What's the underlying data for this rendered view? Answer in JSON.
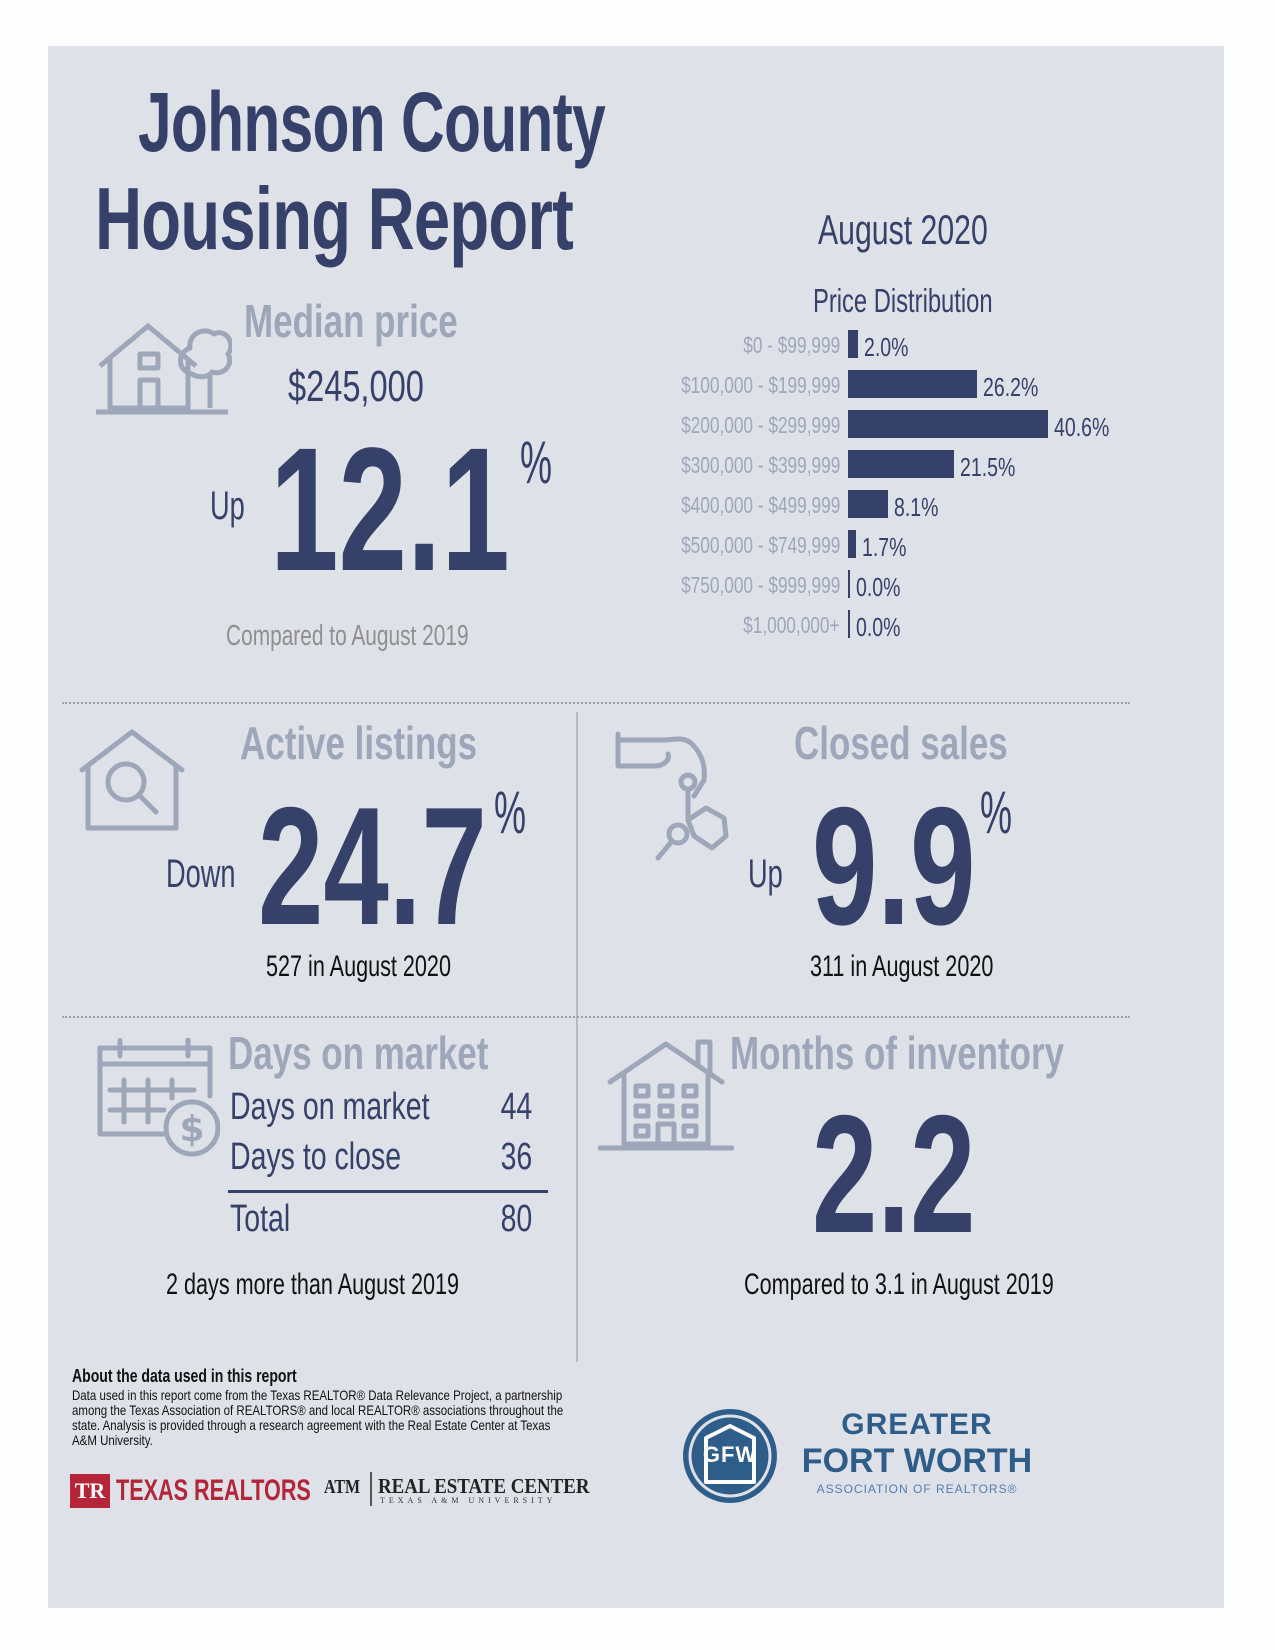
{
  "title": {
    "line1": "Johnson County",
    "line2": "Housing Report"
  },
  "period": "August 2020",
  "median": {
    "heading": "Median price",
    "price": "$245,000",
    "direction": "Up",
    "change": "12.1",
    "pct_sign": "%",
    "compare": "Compared to August 2019"
  },
  "price_distribution": {
    "title": "Price Distribution"
  },
  "chart_data": {
    "type": "bar",
    "title": "Price Distribution",
    "orientation": "horizontal",
    "categories": [
      "$0 - $99,999",
      "$100,000 - $199,999",
      "$200,000 - $299,999",
      "$300,000 - $399,999",
      "$400,000 - $499,999",
      "$500,000 - $749,999",
      "$750,000 - $999,999",
      "$1,000,000+"
    ],
    "values": [
      2.0,
      26.2,
      40.6,
      21.5,
      8.1,
      1.7,
      0.0,
      0.0
    ],
    "value_labels": [
      "2.0%",
      "26.2%",
      "40.6%",
      "21.5%",
      "8.1%",
      "1.7%",
      "0.0%",
      "0.0%"
    ],
    "unit": "%"
  },
  "active_listings": {
    "heading": "Active listings",
    "direction": "Down",
    "change": "24.7",
    "pct_sign": "%",
    "detail": "527 in August 2020"
  },
  "closed_sales": {
    "heading": "Closed sales",
    "direction": "Up",
    "change": "9.9",
    "pct_sign": "%",
    "detail": "311 in August 2020"
  },
  "days_on_market": {
    "heading": "Days on market",
    "rows": [
      {
        "label": "Days on market",
        "value": "44"
      },
      {
        "label": "Days to close",
        "value": "36"
      }
    ],
    "total": {
      "label": "Total",
      "value": "80"
    },
    "compare": "2 days more than August 2019"
  },
  "months_inventory": {
    "heading": "Months of inventory",
    "value": "2.2",
    "compare": "Compared to 3.1 in August 2019"
  },
  "about": {
    "heading": "About the data used in this report",
    "text": "Data used in this report come from the Texas REALTOR® Data Relevance Project, a partnership among the Texas Association of REALTORS® and local REALTOR® associations throughout the state. Analysis is provided through a research agreement with the Real Estate Center at Texas A&M University."
  },
  "logos": {
    "texas_realtors": "TEXAS REALTORS",
    "tr_mark": "TR",
    "atm_mark": "ATM",
    "rec": "REAL ESTATE CENTER",
    "rec_sub": "TEXAS A&M UNIVERSITY",
    "gfw_line1": "GREATER",
    "gfw_line2": "FORT WORTH",
    "gfw_line3": "ASSOCIATION OF REALTORS®",
    "gfw_mark": "GFW"
  },
  "colors": {
    "navy": "#36416a",
    "light": "#9ea6ba",
    "panel": "#dfe1e8",
    "gfw_blue": "#2f5d8a"
  }
}
